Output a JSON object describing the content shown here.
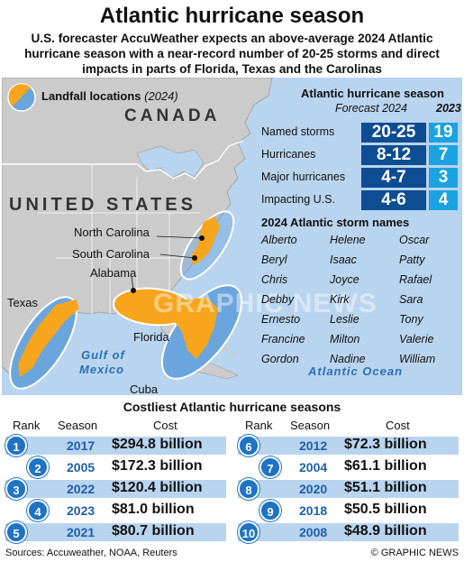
{
  "header": {
    "title": "Atlantic hurricane season",
    "subtitle": "U.S. forecaster AccuWeather expects an above-average 2024 Atlantic hurricane season with a near-record number of 20-25 storms and direct impacts in parts of Florida, Texas and the Carolinas"
  },
  "map": {
    "legend_label": "Landfall locations",
    "legend_year": "(2024)",
    "country_canada": "CANADA",
    "country_us": "UNITED STATES",
    "states": {
      "north_carolina": "North Carolina",
      "south_carolina": "South Carolina",
      "alabama": "Alabama",
      "texas": "Texas",
      "florida": "Florida",
      "cuba": "Cuba"
    },
    "oceans": {
      "gulf_line1": "Gulf of",
      "gulf_line2": "Mexico",
      "atlantic": "Atlantic Ocean"
    },
    "watermark": "GRAPHIC NEWS",
    "colors": {
      "land": "#c9c9c9",
      "sea": "#b9d4ee",
      "landfall": "#f7a51c",
      "region": "#6aa6dd"
    }
  },
  "forecast": {
    "title": "Atlantic hurricane season",
    "col_2024": "Forecast 2024",
    "col_2023": "2023",
    "rows": [
      {
        "label": "Named storms",
        "v2024": "20-25",
        "v2023": "19"
      },
      {
        "label": "Hurricanes",
        "v2024": "8-12",
        "v2023": "7"
      },
      {
        "label": "Major hurricanes",
        "v2024": "4-7",
        "v2023": "3"
      },
      {
        "label": "Impacting U.S.",
        "v2024": "4-6",
        "v2023": "4"
      }
    ]
  },
  "storm_names": {
    "title": "2024 Atlantic storm names",
    "columns": [
      [
        "Alberto",
        "Beryl",
        "Chris",
        "Debby",
        "Ernesto",
        "Francine",
        "Gordon"
      ],
      [
        "Helene",
        "Isaac",
        "Joyce",
        "Kirk",
        "Leslie",
        "Milton",
        "Nadine"
      ],
      [
        "Oscar",
        "Patty",
        "Rafael",
        "Sara",
        "Tony",
        "Valerie",
        "William"
      ]
    ]
  },
  "costliest": {
    "title": "Costliest Atlantic hurricane seasons",
    "col_rank": "Rank",
    "col_season": "Season",
    "col_cost": "Cost",
    "left": [
      {
        "rank": "1",
        "season": "2017",
        "cost": "$294.8 billion"
      },
      {
        "rank": "2",
        "season": "2005",
        "cost": "$172.3 billion"
      },
      {
        "rank": "3",
        "season": "2022",
        "cost": "$120.4 billion"
      },
      {
        "rank": "4",
        "season": "2023",
        "cost": "$81.0 billion"
      },
      {
        "rank": "5",
        "season": "2021",
        "cost": "$80.7 billion"
      }
    ],
    "right": [
      {
        "rank": "6",
        "season": "2012",
        "cost": "$72.3 billion"
      },
      {
        "rank": "7",
        "season": "2004",
        "cost": "$61.1 billion"
      },
      {
        "rank": "8",
        "season": "2020",
        "cost": "$51.1 billion"
      },
      {
        "rank": "9",
        "season": "2018",
        "cost": "$50.5 billion"
      },
      {
        "rank": "10",
        "season": "2008",
        "cost": "$48.9 billion"
      }
    ]
  },
  "footer": {
    "sources": "Sources: Accuweather, NOAA, Reuters",
    "credit": "© GRAPHIC NEWS"
  }
}
